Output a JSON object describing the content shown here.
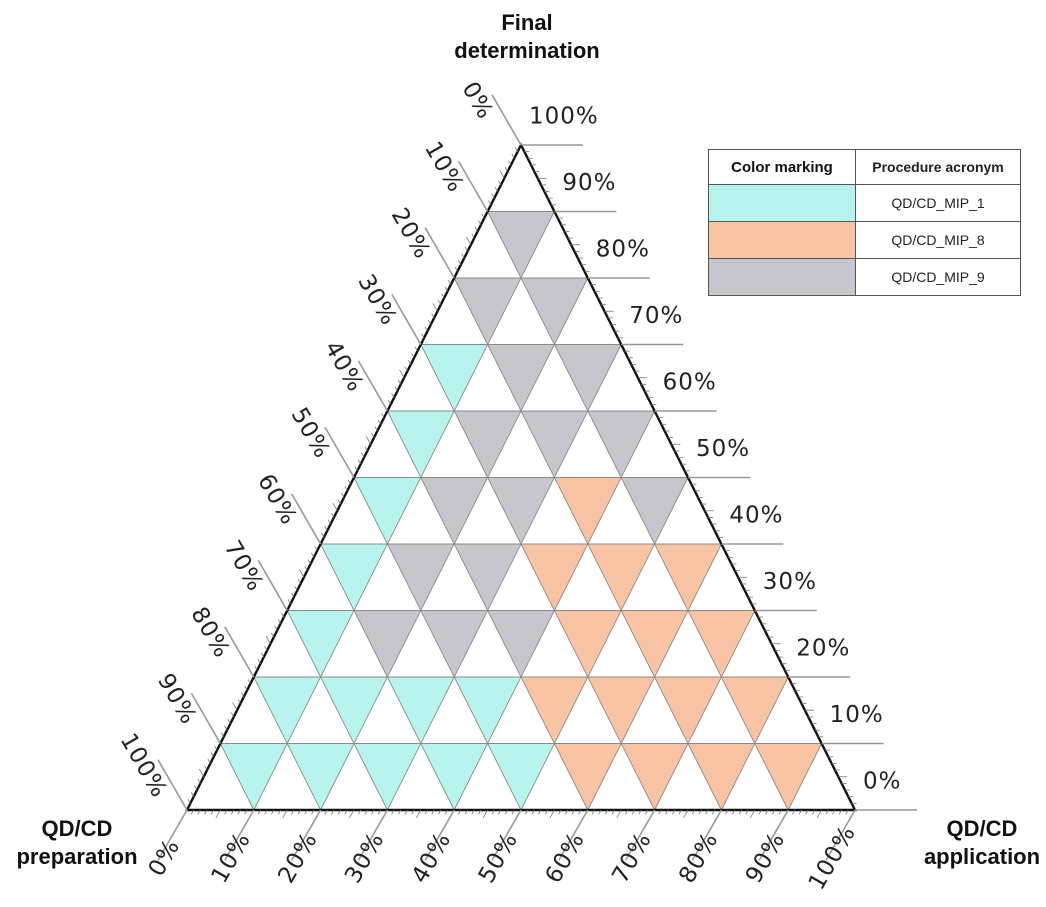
{
  "chart_data": {
    "type": "ternary",
    "corners": {
      "top": "Final\ndetermination",
      "bottom_left": "QD/CD\npreparation",
      "bottom_right": "QD/CD\napplication"
    },
    "ticks": [
      "0%",
      "10%",
      "20%",
      "30%",
      "40%",
      "50%",
      "60%",
      "70%",
      "80%",
      "90%",
      "100%"
    ],
    "grid_divisions": 10,
    "legend": {
      "headers": [
        "Color marking",
        "Procedure acronym"
      ],
      "entries": [
        {
          "name": "QD/CD_MIP_1",
          "color": "#b8f4ee"
        },
        {
          "name": "QD/CD_MIP_8",
          "color": "#f8c4a4"
        },
        {
          "name": "QD/CD_MIP_9",
          "color": "#c6c6cc"
        }
      ]
    },
    "cyan_points": [
      [
        0.9,
        0.0,
        0.1
      ],
      [
        0.8,
        0.1,
        0.1
      ],
      [
        0.7,
        0.2,
        0.1
      ],
      [
        0.6,
        0.3,
        0.1
      ],
      [
        0.5,
        0.4,
        0.1
      ],
      [
        0.4,
        0.5,
        0.1
      ],
      [
        0.3,
        0.0,
        0.7
      ],
      [
        0.4,
        0.0,
        0.6
      ],
      [
        0.5,
        0.0,
        0.5
      ],
      [
        0.6,
        0.0,
        0.4
      ],
      [
        0.7,
        0.0,
        0.3
      ],
      [
        0.8,
        0.0,
        0.2
      ]
    ],
    "orange_points": [
      [
        0.0,
        0.9,
        0.1
      ],
      [
        0.2,
        0.4,
        0.4
      ],
      [
        0.2,
        0.5,
        0.3
      ],
      [
        0.1,
        0.6,
        0.3
      ],
      [
        0.3,
        0.5,
        0.2
      ],
      [
        0.2,
        0.6,
        0.2
      ],
      [
        0.2,
        0.7,
        0.1
      ],
      [
        0.1,
        0.8,
        0.1
      ],
      [
        0.4,
        0.6,
        0.0
      ],
      [
        0.3,
        0.7,
        0.0
      ],
      [
        0.2,
        0.8,
        0.0
      ],
      [
        0.1,
        0.9,
        0.0
      ],
      [
        0.0,
        1.0,
        0.0
      ]
    ]
  }
}
